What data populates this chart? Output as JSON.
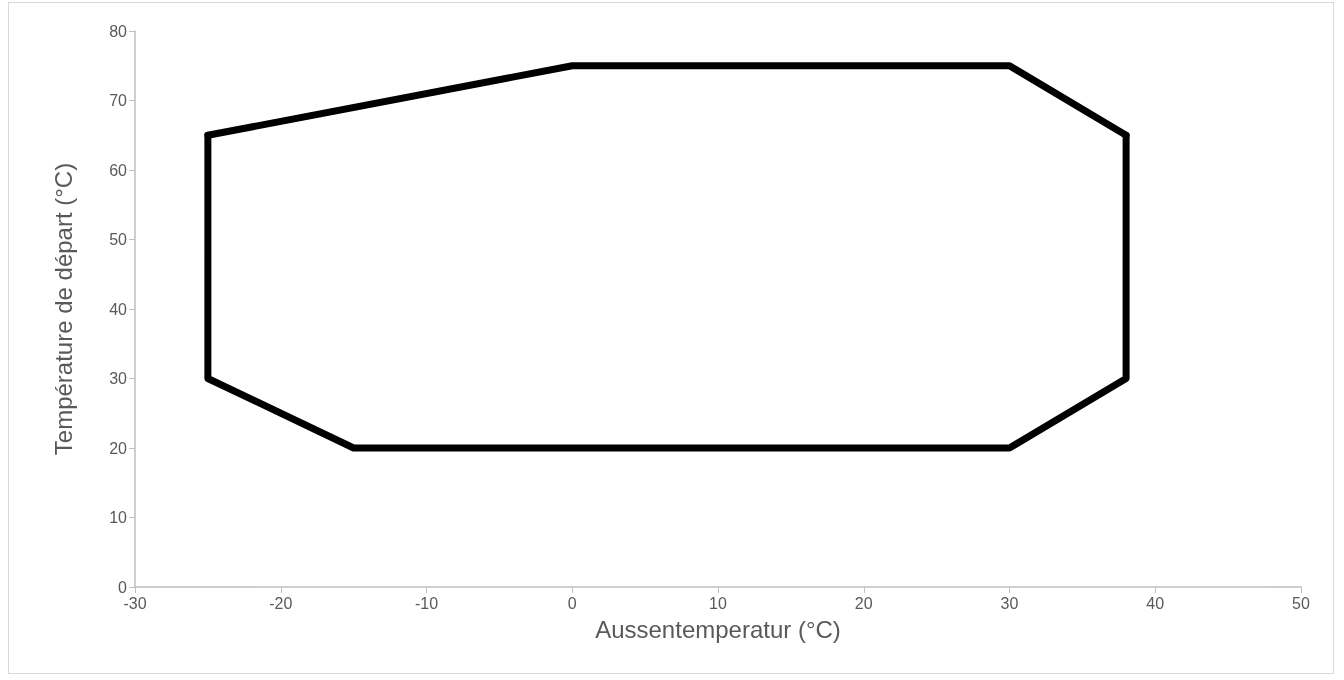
{
  "chart_data": {
    "type": "line",
    "xlabel": "Aussentemperatur (°C)",
    "ylabel": "Température de départ (°C)",
    "series": [
      {
        "color": "#000000",
        "x": [
          -25,
          0,
          30,
          38
        ],
        "values": [
          65,
          75,
          75,
          65
        ]
      },
      {
        "color": "#000000",
        "x": [
          -25,
          -25,
          -15,
          30,
          38,
          38
        ],
        "values": [
          65,
          30,
          20,
          20,
          30,
          65
        ]
      }
    ],
    "xlim": [
      -30,
      50
    ],
    "xticks": [
      -30,
      -20,
      -10,
      0,
      10,
      20,
      30,
      40,
      50
    ],
    "ylim": [
      0,
      80
    ],
    "yticks": [
      0,
      10,
      20,
      30,
      40,
      50,
      60,
      70,
      80
    ],
    "grid": false,
    "marker": "none",
    "line_style": "solid"
  }
}
